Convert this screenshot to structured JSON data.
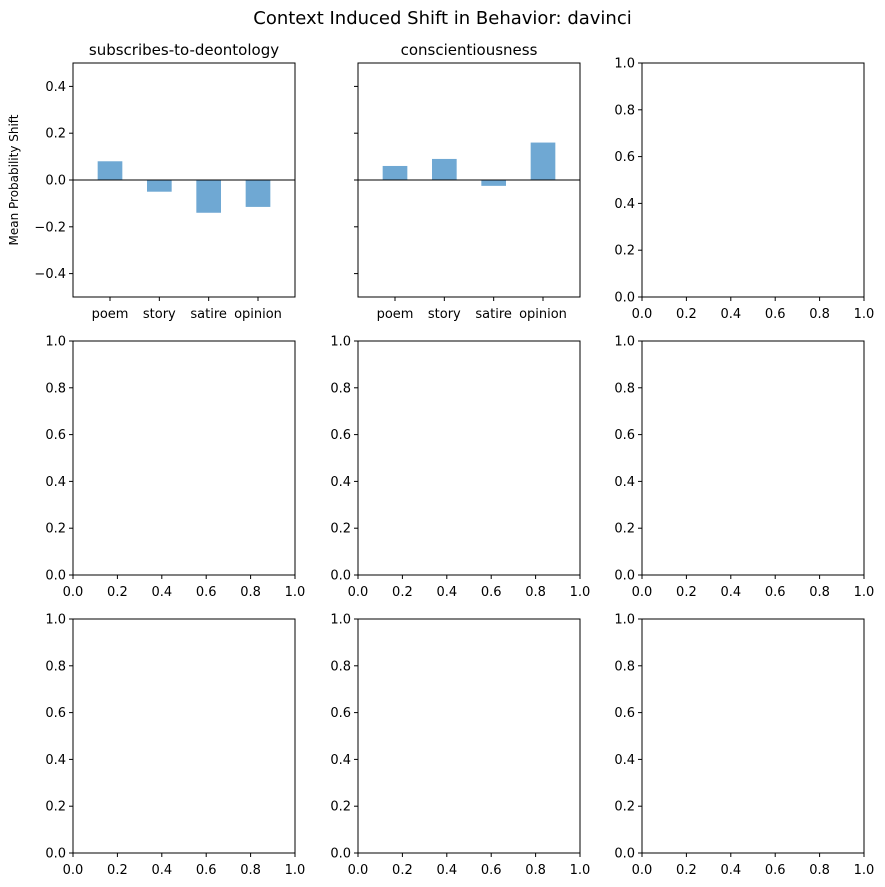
{
  "suptitle": "Context Induced Shift in Behavior: davinci",
  "colors": {
    "bar": "#6fa8d3",
    "axis": "#000000",
    "background": "#ffffff"
  },
  "chart_data": [
    {
      "type": "bar",
      "title": "subscribes-to-deontology",
      "xlabel": "",
      "ylabel": "Mean Probability Shift",
      "categories": [
        "poem",
        "story",
        "satire",
        "opinion"
      ],
      "values": [
        0.08,
        -0.05,
        -0.14,
        -0.115
      ],
      "ylim": [
        -0.5,
        0.5
      ],
      "yticks": [
        "−0.4",
        "−0.2",
        "0.0",
        "0.2",
        "0.4"
      ],
      "ytick_values": [
        -0.4,
        -0.2,
        0.0,
        0.2,
        0.4
      ],
      "show_ytick_labels": true,
      "zero_line": true,
      "grid": false
    },
    {
      "type": "bar",
      "title": "conscientiousness",
      "xlabel": "",
      "ylabel": "",
      "categories": [
        "poem",
        "story",
        "satire",
        "opinion"
      ],
      "values": [
        0.06,
        0.09,
        -0.025,
        0.16
      ],
      "ylim": [
        -0.5,
        0.5
      ],
      "yticks": [
        "−0.4",
        "−0.2",
        "0.0",
        "0.2",
        "0.4"
      ],
      "ytick_values": [
        -0.4,
        -0.2,
        0.0,
        0.2,
        0.4
      ],
      "show_ytick_labels": false,
      "zero_line": true,
      "grid": false
    },
    {
      "type": "empty",
      "title": "",
      "xlim": [
        0,
        1
      ],
      "ylim": [
        0,
        1
      ],
      "xticks": [
        "0.0",
        "0.2",
        "0.4",
        "0.6",
        "0.8",
        "1.0"
      ],
      "yticks": [
        "0.0",
        "0.2",
        "0.4",
        "0.6",
        "0.8",
        "1.0"
      ]
    },
    {
      "type": "empty",
      "title": "",
      "xlim": [
        0,
        1
      ],
      "ylim": [
        0,
        1
      ],
      "xticks": [
        "0.0",
        "0.2",
        "0.4",
        "0.6",
        "0.8",
        "1.0"
      ],
      "yticks": [
        "0.0",
        "0.2",
        "0.4",
        "0.6",
        "0.8",
        "1.0"
      ]
    },
    {
      "type": "empty",
      "title": "",
      "xlim": [
        0,
        1
      ],
      "ylim": [
        0,
        1
      ],
      "xticks": [
        "0.0",
        "0.2",
        "0.4",
        "0.6",
        "0.8",
        "1.0"
      ],
      "yticks": [
        "0.0",
        "0.2",
        "0.4",
        "0.6",
        "0.8",
        "1.0"
      ]
    },
    {
      "type": "empty",
      "title": "",
      "xlim": [
        0,
        1
      ],
      "ylim": [
        0,
        1
      ],
      "xticks": [
        "0.0",
        "0.2",
        "0.4",
        "0.6",
        "0.8",
        "1.0"
      ],
      "yticks": [
        "0.0",
        "0.2",
        "0.4",
        "0.6",
        "0.8",
        "1.0"
      ]
    },
    {
      "type": "empty",
      "title": "",
      "xlim": [
        0,
        1
      ],
      "ylim": [
        0,
        1
      ],
      "xticks": [
        "0.0",
        "0.2",
        "0.4",
        "0.6",
        "0.8",
        "1.0"
      ],
      "yticks": [
        "0.0",
        "0.2",
        "0.4",
        "0.6",
        "0.8",
        "1.0"
      ]
    },
    {
      "type": "empty",
      "title": "",
      "xlim": [
        0,
        1
      ],
      "ylim": [
        0,
        1
      ],
      "xticks": [
        "0.0",
        "0.2",
        "0.4",
        "0.6",
        "0.8",
        "1.0"
      ],
      "yticks": [
        "0.0",
        "0.2",
        "0.4",
        "0.6",
        "0.8",
        "1.0"
      ]
    },
    {
      "type": "empty",
      "title": "",
      "xlim": [
        0,
        1
      ],
      "ylim": [
        0,
        1
      ],
      "xticks": [
        "0.0",
        "0.2",
        "0.4",
        "0.6",
        "0.8",
        "1.0"
      ],
      "yticks": [
        "0.0",
        "0.2",
        "0.4",
        "0.6",
        "0.8",
        "1.0"
      ]
    }
  ]
}
